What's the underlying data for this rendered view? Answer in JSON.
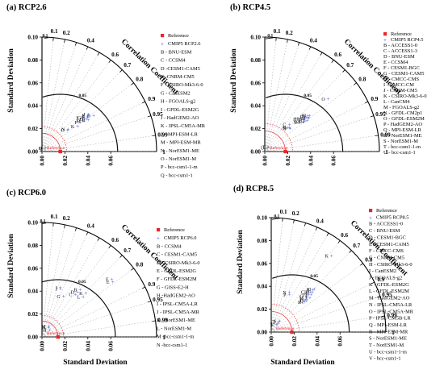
{
  "figure": {
    "ylabel": "Standard Deviation",
    "xlabel": "Standard Deviation",
    "cc_label": "Correlation Coefficient",
    "reference_arc_label": "Reference",
    "colors": {
      "reference": "#e8262a",
      "model": "#3a52c9",
      "contour": "#111111",
      "ref_arc": "#e8262a",
      "grid": "#777777"
    }
  },
  "chart_data": [
    {
      "type": "scatter",
      "subtype": "taylor-diagram",
      "title": "(a) RCP2.6",
      "ylabel": "Standard Deviation",
      "xlabel": "",
      "corr_label": "Correlation Coefficient",
      "ylim": [
        0,
        0.1
      ],
      "xlim": [
        0,
        0.1
      ],
      "y_ticks": [
        "0.10",
        "0.08",
        "0.06",
        "0.04",
        "0.02",
        "0.00"
      ],
      "x_ticks": [
        "0.00",
        "0.02",
        "0.04",
        "0.06"
      ],
      "corr_ticks": [
        0.1,
        0.2,
        0.3,
        0.4,
        0.5,
        0.6,
        0.7,
        0.8,
        0.9,
        0.95,
        0.99,
        1
      ],
      "corr_tick_labels": [
        "0.1",
        "0.2",
        "0.4",
        "0.6",
        "0.7",
        "0.8",
        "0.9",
        "0.95",
        "0.99",
        "1"
      ],
      "rms_contours": [
        0.05,
        0.1
      ],
      "rms_labels": [
        "0.05",
        "0.1"
      ],
      "reference": {
        "label": "Reference",
        "std": 0.016
      },
      "legend": [
        "Reference",
        "CMIP5 RCP2.6",
        "B - BNU-ESM",
        "C - CCSM4",
        "D -CESM1-CAM5",
        "E -CNRM-CM5",
        "F - CSIRO-Mk3-6-0",
        "G - CanESM2",
        "H - FGOALS-g2",
        "I - GFDL-ESM2G",
        "J - HadGEM2-AO",
        "K - IPSL-CM5A-MR",
        "L - MPI-ESM-LR",
        "M - MPI-ESM-MR",
        "N - NorESM1-ME",
        "O - NorESM1-M",
        "P - bcc-csm1-1-m",
        "Q - bcc-csm1-1"
      ],
      "points": [
        {
          "label": "B",
          "std": 0.055,
          "corr": 0.82
        },
        {
          "label": "C",
          "std": 0.05,
          "corr": 0.8
        },
        {
          "label": "D",
          "std": 0.048,
          "corr": 0.81
        },
        {
          "label": "E",
          "std": 0.051,
          "corr": 0.79
        },
        {
          "label": "F",
          "std": 0.042,
          "corr": 0.8
        },
        {
          "label": "G",
          "std": 0.047,
          "corr": 0.78
        },
        {
          "label": "H",
          "std": 0.049,
          "corr": 0.83
        },
        {
          "label": "I",
          "std": 0.05,
          "corr": 0.79
        },
        {
          "label": "J",
          "std": 0.052,
          "corr": 0.78
        },
        {
          "label": "K",
          "std": 0.038,
          "corr": 0.82
        },
        {
          "label": "L",
          "std": 0.046,
          "corr": 0.77
        },
        {
          "label": "M",
          "std": 0.045,
          "corr": 0.81
        },
        {
          "label": "N",
          "std": 0.03,
          "corr": 0.76
        },
        {
          "label": "O",
          "std": 0.029,
          "corr": 0.77
        },
        {
          "label": "P",
          "std": 0.004,
          "corr": 0.72
        },
        {
          "label": "Q",
          "std": 0.004,
          "corr": 0.7
        }
      ]
    },
    {
      "type": "scatter",
      "subtype": "taylor-diagram",
      "title": "(b) RCP4.5",
      "ylabel": "Standard Deviation",
      "xlabel": "",
      "corr_label": "Correlation Coefficient",
      "ylim": [
        0,
        0.1
      ],
      "xlim": [
        0,
        0.1
      ],
      "y_ticks": [
        "0.10",
        "0.08",
        "0.06",
        "0.04",
        "0.02",
        "0.00"
      ],
      "x_ticks": [
        "0.00",
        "0.02",
        "0.04",
        "0.06"
      ],
      "corr_ticks": [
        0.1,
        0.2,
        0.3,
        0.4,
        0.5,
        0.6,
        0.7,
        0.8,
        0.9,
        0.95,
        0.99,
        1
      ],
      "corr_tick_labels": [
        "0.1",
        "0.2",
        "0.4",
        "0.6",
        "0.7",
        "0.8",
        "0.9",
        "0.95",
        "0.99",
        "1"
      ],
      "rms_contours": [
        0.05,
        0.1
      ],
      "rms_labels": [
        "0.05",
        "0.1"
      ],
      "reference": {
        "label": "Reference",
        "std": 0.018
      },
      "legend": [
        "Reference",
        "CMIP5 RCP4.5",
        "B - ACCESS1-0",
        "C - ACCESS1-3",
        "D - BNU-ESM",
        "E - CCSM4",
        "F - CESM1-BGC",
        "G - CESM1-CAM5",
        "H - CMCC-CMS",
        "I - CMCC-CM",
        "J - CNRM-CM5",
        "K - CSIRO-Mk3-6-0",
        "L - CanCM4",
        "M - FGOALS-g2",
        "N - GFDL-CM2p1",
        "O - GFDL-ESM2M",
        "P - HadGEM2-AO",
        "Q - MPI-ESM-LR",
        "R - NorESM1-ME",
        "S - NorESM1-M",
        "T - bcc-csm1-1-m",
        "U - bcc-csm1-1"
      ],
      "points": [
        {
          "label": "B",
          "std": 0.05,
          "corr": 0.78
        },
        {
          "label": "C",
          "std": 0.032,
          "corr": 0.67
        },
        {
          "label": "D",
          "std": 0.048,
          "corr": 0.8
        },
        {
          "label": "E",
          "std": 0.047,
          "corr": 0.77
        },
        {
          "label": "F",
          "std": 0.041,
          "corr": 0.73
        },
        {
          "label": "G",
          "std": 0.045,
          "corr": 0.78
        },
        {
          "label": "H",
          "std": 0.043,
          "corr": 0.75
        },
        {
          "label": "I",
          "std": 0.046,
          "corr": 0.76
        },
        {
          "label": "J",
          "std": 0.048,
          "corr": 0.79
        },
        {
          "label": "K",
          "std": 0.049,
          "corr": 0.77
        },
        {
          "label": "L",
          "std": 0.044,
          "corr": 0.8
        },
        {
          "label": "M",
          "std": 0.042,
          "corr": 0.79
        },
        {
          "label": "N",
          "std": 0.04,
          "corr": 0.77
        },
        {
          "label": "O",
          "std": 0.072,
          "corr": 0.77
        },
        {
          "label": "P",
          "std": 0.03,
          "corr": 0.74
        },
        {
          "label": "Q",
          "std": 0.046,
          "corr": 0.81
        },
        {
          "label": "R",
          "std": 0.03,
          "corr": 0.72
        },
        {
          "label": "S",
          "std": 0.029,
          "corr": 0.7
        },
        {
          "label": "T",
          "std": 0.005,
          "corr": 0.62
        },
        {
          "label": "U",
          "std": 0.004,
          "corr": 0.58
        }
      ]
    },
    {
      "type": "scatter",
      "subtype": "taylor-diagram",
      "title": "(c) RCP6.0",
      "ylabel": "Standard Deviation",
      "xlabel": "Standard Deviation",
      "corr_label": "Correlation Coefficient",
      "ylim": [
        0,
        0.1
      ],
      "xlim": [
        0,
        0.1
      ],
      "y_ticks": [
        "0.10",
        "0.08",
        "0.06",
        "0.04",
        "0.02",
        "0.00"
      ],
      "x_ticks": [
        "0.00",
        "0.02",
        "0.04",
        "0.06"
      ],
      "corr_ticks": [
        0.1,
        0.2,
        0.3,
        0.4,
        0.5,
        0.6,
        0.7,
        0.8,
        0.9,
        0.95,
        0.99,
        1
      ],
      "corr_tick_labels": [
        "0.1",
        "0.2",
        "0.4",
        "0.6",
        "0.7",
        "0.8",
        "0.9",
        "0.95",
        "0.99",
        "1"
      ],
      "rms_contours": [
        0.05,
        0.1
      ],
      "rms_labels": [
        "0.05",
        "0.1"
      ],
      "reference": {
        "label": "Reference",
        "std": 0.014
      },
      "legend": [
        "Reference",
        "CMIP5 RCP6.0",
        "B - CCSM4",
        "C - CESM1-CAM5",
        "D - CSIRO-Mk3-6-0",
        "E - GFDL-ESM2G",
        "F - GFDL-ESM2M",
        "G - GISS-E2-H",
        "H -HadGEM2-AO",
        "I - IPSL-CM5A-LR",
        "J - IPSL-CM5A-MR",
        "K - NorESM1-ME",
        "L - NorESM1-M",
        "M -bcc-csm1-1-m",
        "N -bcc-csm1-1"
      ],
      "points": [
        {
          "label": "B",
          "std": 0.053,
          "corr": 0.63
        },
        {
          "label": "C",
          "std": 0.047,
          "corr": 0.62
        },
        {
          "label": "D",
          "std": 0.05,
          "corr": 0.62
        },
        {
          "label": "E",
          "std": 0.078,
          "corr": 0.79
        },
        {
          "label": "F",
          "std": 0.079,
          "corr": 0.77
        },
        {
          "label": "G",
          "std": 0.04,
          "corr": 0.47
        },
        {
          "label": "H",
          "std": 0.009,
          "corr": 0.75
        },
        {
          "label": "I",
          "std": 0.046,
          "corr": 0.35
        },
        {
          "label": "J",
          "std": 0.045,
          "corr": 0.36
        },
        {
          "label": "K",
          "std": 0.054,
          "corr": 0.71
        },
        {
          "label": "L",
          "std": 0.05,
          "corr": 0.72
        },
        {
          "label": "M",
          "std": 0.011,
          "corr": 0.55
        },
        {
          "label": "N",
          "std": 0.01,
          "corr": 0.58
        }
      ]
    },
    {
      "type": "scatter",
      "subtype": "taylor-diagram",
      "title": "(d) RCP8.5",
      "ylabel": "Standard Deviation",
      "xlabel": "Standard Deviation",
      "corr_label": "Correlation Coefficient",
      "ylim": [
        0,
        0.1
      ],
      "xlim": [
        0,
        0.1
      ],
      "y_ticks": [
        "0.10",
        "0.08",
        "0.06",
        "0.04",
        "0.02",
        "0.00"
      ],
      "x_ticks": [
        "0.00",
        "0.02",
        "0.04",
        "0.06"
      ],
      "corr_ticks": [
        0.1,
        0.2,
        0.3,
        0.4,
        0.5,
        0.6,
        0.7,
        0.8,
        0.9,
        0.95,
        0.99,
        1
      ],
      "corr_tick_labels": [
        "0.1",
        "0.2",
        "0.4",
        "0.6",
        "0.7",
        "0.8",
        "0.9",
        "0.95",
        "0.99",
        "1"
      ],
      "rms_contours": [
        0.05,
        0.1
      ],
      "rms_labels": [
        "0.05",
        "0.1"
      ],
      "reference": {
        "label": "Reference",
        "std": 0.018
      },
      "legend": [
        "Reference",
        "CMIP5 RCP8.5",
        "B - ACCESS1-0",
        "C - BNU-ESM",
        "D - CESM1-BGC",
        "E - CESM1-CAM5",
        "F - CMCC-CMS",
        "G - CNRM-CM5",
        "H - CSIRO-Mk3-6-0",
        "I - CanESM2",
        "J - FGOALS-g2",
        "K - GFDL-ESM2G",
        "L - GFDL-ESM2M",
        "M - HadGEM2-AO",
        "N - IPSL-CM5A-LR",
        "O - IPSL-CM5A-MR",
        "P - IPSL-CM5B-LR",
        "Q - MPI-ESM-LR",
        "R - MPI-ESM-MR",
        "S - NorESM1-ME",
        "T - NorESM1-M",
        "U - bcc-csm1-1-m",
        "V - bcc-csm1-1"
      ],
      "points": [
        {
          "label": "B",
          "std": 0.052,
          "corr": 0.7
        },
        {
          "label": "C",
          "std": 0.047,
          "corr": 0.67
        },
        {
          "label": "D",
          "std": 0.05,
          "corr": 0.72
        },
        {
          "label": "E",
          "std": 0.048,
          "corr": 0.73
        },
        {
          "label": "F",
          "std": 0.046,
          "corr": 0.71
        },
        {
          "label": "G",
          "std": 0.044,
          "corr": 0.7
        },
        {
          "label": "H",
          "std": 0.042,
          "corr": 0.74
        },
        {
          "label": "I",
          "std": 0.04,
          "corr": 0.73
        },
        {
          "label": "J",
          "std": 0.045,
          "corr": 0.75
        },
        {
          "label": "K",
          "std": 0.085,
          "corr": 0.62
        },
        {
          "label": "L",
          "std": 0.049,
          "corr": 0.7
        },
        {
          "label": "M",
          "std": 0.043,
          "corr": 0.72
        },
        {
          "label": "N",
          "std": 0.038,
          "corr": 0.42
        },
        {
          "label": "O",
          "std": 0.053,
          "corr": 0.71
        },
        {
          "label": "P",
          "std": 0.036,
          "corr": 0.44
        },
        {
          "label": "Q",
          "std": 0.041,
          "corr": 0.75
        },
        {
          "label": "R",
          "std": 0.039,
          "corr": 0.74
        },
        {
          "label": "S",
          "std": 0.012,
          "corr": 0.6
        },
        {
          "label": "T",
          "std": 0.011,
          "corr": 0.58
        },
        {
          "label": "U",
          "std": 0.009,
          "corr": 0.62
        },
        {
          "label": "V",
          "std": 0.008,
          "corr": 0.6
        }
      ]
    }
  ]
}
